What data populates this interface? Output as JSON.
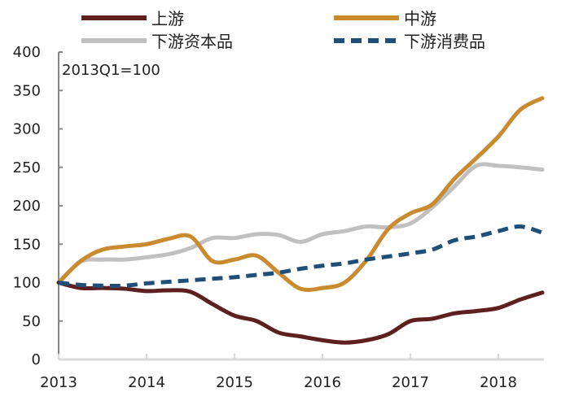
{
  "chart_data": {
    "type": "line",
    "annotation": "2013Q1=100",
    "x_labels": [
      "2013",
      "2014",
      "2015",
      "2016",
      "2017",
      "2018"
    ],
    "x_start": "2013Q1",
    "x_frequency": "quarterly",
    "x": [
      "2013Q1",
      "2013Q2",
      "2013Q3",
      "2013Q4",
      "2014Q1",
      "2014Q2",
      "2014Q3",
      "2014Q4",
      "2015Q1",
      "2015Q2",
      "2015Q3",
      "2015Q4",
      "2016Q1",
      "2016Q2",
      "2016Q3",
      "2016Q4",
      "2017Q1",
      "2017Q2",
      "2017Q3",
      "2017Q4",
      "2018Q1",
      "2018Q2",
      "2018Q3"
    ],
    "ylim": [
      0,
      400
    ],
    "yticks": [
      0,
      50,
      100,
      150,
      200,
      250,
      300,
      350,
      400
    ],
    "legend_position": "top",
    "grid": false,
    "series": [
      {
        "name": "上游",
        "color": "#5e1f1f",
        "dash": false,
        "values": [
          100,
          93,
          93,
          92,
          89,
          90,
          88,
          72,
          57,
          50,
          35,
          30,
          25,
          22,
          25,
          33,
          50,
          53,
          60,
          63,
          67,
          78,
          87
        ]
      },
      {
        "name": "中游",
        "color": "#c98a30",
        "dash": false,
        "values": [
          100,
          128,
          143,
          147,
          150,
          157,
          160,
          128,
          130,
          135,
          113,
          92,
          93,
          100,
          129,
          170,
          190,
          202,
          235,
          262,
          290,
          325,
          340
        ]
      },
      {
        "name": "下游资本品",
        "color": "#c0c0c0",
        "dash": false,
        "values": [
          100,
          127,
          130,
          130,
          133,
          137,
          145,
          158,
          158,
          163,
          162,
          153,
          163,
          167,
          173,
          172,
          177,
          198,
          225,
          252,
          252,
          250,
          247
        ]
      },
      {
        "name": "下游消费品",
        "color": "#1f4e79",
        "dash": true,
        "values": [
          100,
          97,
          96,
          96,
          99,
          101,
          103,
          105,
          107,
          110,
          113,
          118,
          122,
          125,
          130,
          134,
          138,
          143,
          155,
          160,
          167,
          173,
          165
        ]
      }
    ]
  }
}
